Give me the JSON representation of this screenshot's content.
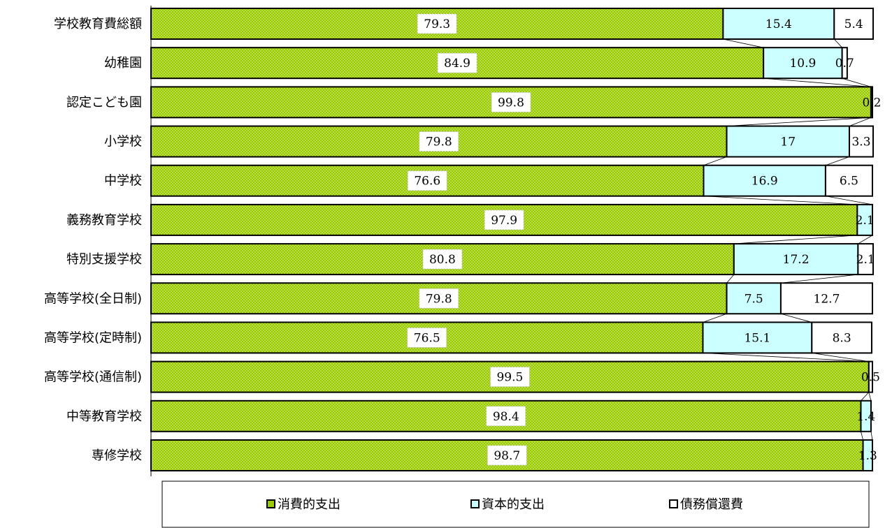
{
  "chart_data": {
    "type": "bar",
    "orientation": "horizontal",
    "stacked": "percent",
    "categories": [
      "学校教育費総額",
      "幼稚園",
      "認定こども園",
      "小学校",
      "中学校",
      "義務教育学校",
      "特別支援学校",
      "高等学校(全日制)",
      "高等学校(定時制)",
      "高等学校(通信制)",
      "中等教育学校",
      "専修学校"
    ],
    "series": [
      {
        "name": "消費的支出",
        "color": "#99cc00",
        "pattern": "dotted",
        "values": [
          79.3,
          84.9,
          99.8,
          79.8,
          76.6,
          97.9,
          80.8,
          79.8,
          76.5,
          99.5,
          98.4,
          98.7
        ]
      },
      {
        "name": "資本的支出",
        "color": "#ccffff",
        "values": [
          15.4,
          10.9,
          0,
          17,
          16.9,
          2.1,
          17.2,
          7.5,
          15.1,
          0,
          1.4,
          1.3
        ]
      },
      {
        "name": "債務償還費",
        "color": "#ffffff",
        "values": [
          5.4,
          0.7,
          0.2,
          3.3,
          6.5,
          0,
          2.1,
          12.7,
          8.3,
          0.5,
          0,
          0
        ]
      }
    ],
    "xlim": [
      0,
      100
    ],
    "series_lines": true,
    "legend_position": "bottom",
    "title": "",
    "xlabel": "",
    "ylabel": ""
  }
}
